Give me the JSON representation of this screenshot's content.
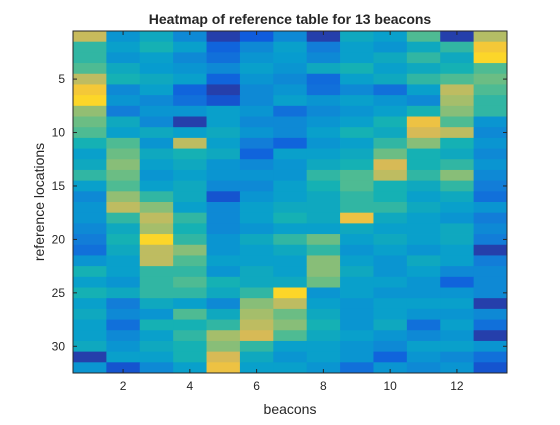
{
  "chart_data": {
    "type": "heatmap",
    "title": "Heatmap of reference table for 13 beacons",
    "xlabel": "beacons",
    "ylabel": "reference locations",
    "x_ticks": [
      2,
      4,
      6,
      8,
      10,
      12
    ],
    "y_ticks": [
      5,
      10,
      15,
      20,
      25,
      30
    ],
    "xlim": [
      0.5,
      13.5
    ],
    "ylim": [
      0.5,
      32.5
    ],
    "y_direction": "reverse",
    "colormap": "parula",
    "value_range": [
      0,
      1
    ],
    "grid": false,
    "values": [
      [
        0.82,
        0.35,
        0.45,
        0.3,
        0.05,
        0.12,
        0.3,
        0.05,
        0.45,
        0.4,
        0.6,
        0.05,
        0.78
      ],
      [
        0.55,
        0.4,
        0.5,
        0.4,
        0.15,
        0.3,
        0.4,
        0.25,
        0.4,
        0.35,
        0.45,
        0.55,
        0.92
      ],
      [
        0.55,
        0.35,
        0.4,
        0.3,
        0.2,
        0.35,
        0.38,
        0.3,
        0.4,
        0.45,
        0.55,
        0.45,
        0.95
      ],
      [
        0.6,
        0.45,
        0.38,
        0.35,
        0.3,
        0.4,
        0.35,
        0.45,
        0.5,
        0.4,
        0.45,
        0.5,
        0.6
      ],
      [
        0.8,
        0.5,
        0.45,
        0.4,
        0.15,
        0.35,
        0.3,
        0.18,
        0.4,
        0.45,
        0.55,
        0.6,
        0.65
      ],
      [
        0.92,
        0.3,
        0.4,
        0.15,
        0.05,
        0.3,
        0.35,
        0.2,
        0.3,
        0.2,
        0.4,
        0.8,
        0.6
      ],
      [
        0.95,
        0.35,
        0.3,
        0.2,
        0.1,
        0.3,
        0.4,
        0.35,
        0.4,
        0.35,
        0.3,
        0.75,
        0.55
      ],
      [
        0.72,
        0.25,
        0.35,
        0.35,
        0.4,
        0.35,
        0.2,
        0.3,
        0.35,
        0.4,
        0.5,
        0.7,
        0.55
      ],
      [
        0.65,
        0.45,
        0.3,
        0.05,
        0.4,
        0.3,
        0.3,
        0.35,
        0.4,
        0.5,
        0.9,
        0.6,
        0.35
      ],
      [
        0.6,
        0.4,
        0.45,
        0.4,
        0.45,
        0.35,
        0.3,
        0.4,
        0.5,
        0.45,
        0.85,
        0.8,
        0.3
      ],
      [
        0.5,
        0.6,
        0.35,
        0.8,
        0.4,
        0.25,
        0.15,
        0.35,
        0.4,
        0.55,
        0.7,
        0.5,
        0.35
      ],
      [
        0.4,
        0.65,
        0.45,
        0.5,
        0.45,
        0.15,
        0.4,
        0.4,
        0.45,
        0.65,
        0.5,
        0.45,
        0.3
      ],
      [
        0.45,
        0.7,
        0.4,
        0.45,
        0.35,
        0.3,
        0.35,
        0.45,
        0.5,
        0.85,
        0.5,
        0.55,
        0.35
      ],
      [
        0.55,
        0.65,
        0.35,
        0.4,
        0.35,
        0.35,
        0.35,
        0.55,
        0.6,
        0.8,
        0.55,
        0.7,
        0.3
      ],
      [
        0.4,
        0.6,
        0.4,
        0.45,
        0.3,
        0.3,
        0.4,
        0.5,
        0.6,
        0.5,
        0.45,
        0.55,
        0.25
      ],
      [
        0.3,
        0.72,
        0.55,
        0.45,
        0.1,
        0.35,
        0.4,
        0.45,
        0.55,
        0.5,
        0.4,
        0.45,
        0.2
      ],
      [
        0.35,
        0.8,
        0.7,
        0.4,
        0.3,
        0.4,
        0.45,
        0.45,
        0.55,
        0.55,
        0.45,
        0.4,
        0.35
      ],
      [
        0.35,
        0.55,
        0.8,
        0.55,
        0.3,
        0.4,
        0.5,
        0.45,
        0.9,
        0.45,
        0.4,
        0.35,
        0.25
      ],
      [
        0.3,
        0.45,
        0.75,
        0.5,
        0.3,
        0.35,
        0.4,
        0.4,
        0.45,
        0.4,
        0.4,
        0.45,
        0.3
      ],
      [
        0.25,
        0.5,
        0.95,
        0.55,
        0.35,
        0.45,
        0.55,
        0.65,
        0.4,
        0.45,
        0.4,
        0.45,
        0.25
      ],
      [
        0.2,
        0.45,
        0.8,
        0.7,
        0.35,
        0.4,
        0.45,
        0.55,
        0.35,
        0.4,
        0.35,
        0.4,
        0.05
      ],
      [
        0.35,
        0.4,
        0.8,
        0.6,
        0.4,
        0.4,
        0.4,
        0.7,
        0.4,
        0.35,
        0.45,
        0.4,
        0.25
      ],
      [
        0.5,
        0.4,
        0.55,
        0.55,
        0.35,
        0.45,
        0.4,
        0.7,
        0.45,
        0.35,
        0.4,
        0.3,
        0.3
      ],
      [
        0.4,
        0.35,
        0.55,
        0.6,
        0.5,
        0.45,
        0.45,
        0.65,
        0.4,
        0.4,
        0.35,
        0.15,
        0.3
      ],
      [
        0.5,
        0.45,
        0.55,
        0.55,
        0.45,
        0.55,
        0.95,
        0.35,
        0.4,
        0.35,
        0.35,
        0.35,
        0.3
      ],
      [
        0.4,
        0.25,
        0.45,
        0.4,
        0.3,
        0.7,
        0.8,
        0.4,
        0.35,
        0.4,
        0.4,
        0.4,
        0.05
      ],
      [
        0.45,
        0.3,
        0.35,
        0.6,
        0.45,
        0.75,
        0.65,
        0.45,
        0.35,
        0.4,
        0.35,
        0.35,
        0.3
      ],
      [
        0.4,
        0.2,
        0.5,
        0.5,
        0.55,
        0.8,
        0.7,
        0.5,
        0.35,
        0.45,
        0.2,
        0.4,
        0.2
      ],
      [
        0.4,
        0.3,
        0.4,
        0.55,
        0.75,
        0.85,
        0.6,
        0.45,
        0.4,
        0.35,
        0.3,
        0.35,
        0.05
      ],
      [
        0.45,
        0.35,
        0.45,
        0.5,
        0.7,
        0.55,
        0.4,
        0.4,
        0.35,
        0.3,
        0.4,
        0.4,
        0.35
      ],
      [
        0.05,
        0.4,
        0.4,
        0.5,
        0.85,
        0.45,
        0.35,
        0.4,
        0.35,
        0.15,
        0.35,
        0.3,
        0.2
      ],
      [
        0.35,
        0.1,
        0.3,
        0.4,
        0.9,
        0.4,
        0.4,
        0.35,
        0.2,
        0.35,
        0.3,
        0.35,
        0.1
      ]
    ]
  }
}
